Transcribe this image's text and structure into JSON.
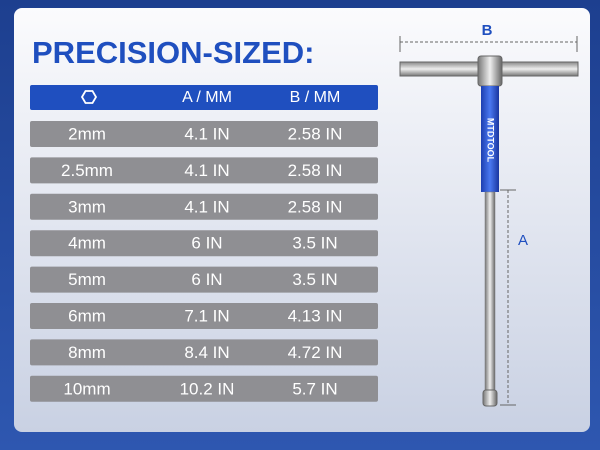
{
  "header": {
    "title": "PRECISION-SIZED:"
  },
  "table": {
    "columns": [
      "A / MM",
      "B / MM"
    ],
    "rows": [
      [
        "2mm",
        "4.1 IN",
        "2.58 IN"
      ],
      [
        "2.5mm",
        "4.1 IN",
        "2.58 IN"
      ],
      [
        "3mm",
        "4.1 IN",
        "2.58 IN"
      ],
      [
        "4mm",
        "6 IN",
        "3.5 IN"
      ],
      [
        "5mm",
        "6 IN",
        "3.5 IN"
      ],
      [
        "6mm",
        "7.1 IN",
        "4.13 IN"
      ],
      [
        "8mm",
        "8.4 IN",
        "4.72 IN"
      ],
      [
        "10mm",
        "10.2 IN",
        "5.7 IN"
      ]
    ]
  },
  "diagram": {
    "label_b": "B",
    "label_a": "A",
    "brand": "MTDTOOL"
  }
}
